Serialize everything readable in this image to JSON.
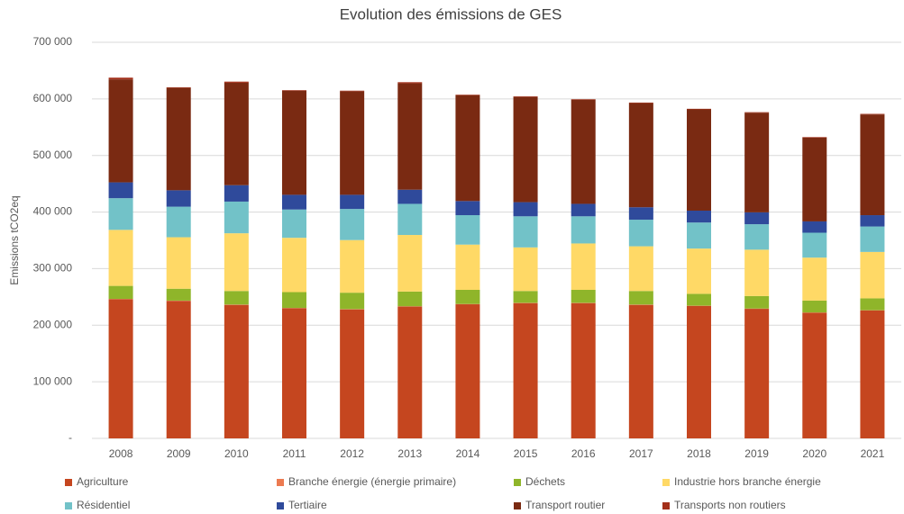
{
  "chart_data": {
    "type": "stacked_bar",
    "title": "Evolution des émissions de GES",
    "ylabel": "Emissions tCO2eq",
    "categories": [
      "2008",
      "2009",
      "2010",
      "2011",
      "2012",
      "2013",
      "2014",
      "2015",
      "2016",
      "2017",
      "2018",
      "2019",
      "2020",
      "2021"
    ],
    "series": [
      {
        "name": "Agriculture",
        "color": "#c5461f",
        "values": [
          246000,
          243000,
          236000,
          230000,
          228000,
          233000,
          237000,
          239000,
          239000,
          236000,
          234000,
          229000,
          222000,
          226000
        ]
      },
      {
        "name": "Branche énergie (énergie primaire)",
        "color": "#ec7a50",
        "values": [
          500,
          500,
          500,
          500,
          500,
          500,
          500,
          500,
          500,
          500,
          500,
          500,
          500,
          500
        ]
      },
      {
        "name": "Déchets",
        "color": "#8fb52a",
        "values": [
          23000,
          21000,
          24000,
          28000,
          29000,
          26000,
          25000,
          21000,
          23000,
          24000,
          21000,
          22000,
          21000,
          21000
        ]
      },
      {
        "name": "Industrie hors branche énergie",
        "color": "#ffd966",
        "values": [
          99000,
          91000,
          102000,
          96000,
          93000,
          100000,
          80000,
          77000,
          82000,
          79000,
          80000,
          82000,
          76000,
          82000
        ]
      },
      {
        "name": "Résidentiel",
        "color": "#72c2c8",
        "values": [
          56000,
          54000,
          56000,
          50000,
          55000,
          55000,
          52000,
          55000,
          48000,
          47000,
          46000,
          45000,
          44000,
          45000
        ]
      },
      {
        "name": "Tertiaire",
        "color": "#2f4a9b",
        "values": [
          28000,
          29000,
          29000,
          26000,
          25000,
          25000,
          25000,
          25000,
          22000,
          22000,
          21000,
          21000,
          20000,
          20000
        ]
      },
      {
        "name": "Transport routier",
        "color": "#7a2a12",
        "values": [
          182000,
          181000,
          181000,
          184000,
          183000,
          188000,
          187000,
          186000,
          184000,
          184000,
          179000,
          176000,
          148000,
          178000
        ]
      },
      {
        "name": "Transports non routiers",
        "color": "#a3301a",
        "values": [
          3000,
          1000,
          2000,
          1000,
          1000,
          2000,
          1000,
          1000,
          1000,
          1000,
          1000,
          1000,
          1000,
          1000
        ]
      }
    ],
    "ylim": [
      0,
      700000
    ],
    "yticks": [
      {
        "value": 0,
        "label": "-"
      },
      {
        "value": 100000,
        "label": "100 000"
      },
      {
        "value": 200000,
        "label": "200 000"
      },
      {
        "value": 300000,
        "label": "300 000"
      },
      {
        "value": 400000,
        "label": "400 000"
      },
      {
        "value": 500000,
        "label": "500 000"
      },
      {
        "value": 600000,
        "label": "600 000"
      },
      {
        "value": 700000,
        "label": "700 000"
      }
    ],
    "grid": true,
    "legend": "bottom"
  }
}
